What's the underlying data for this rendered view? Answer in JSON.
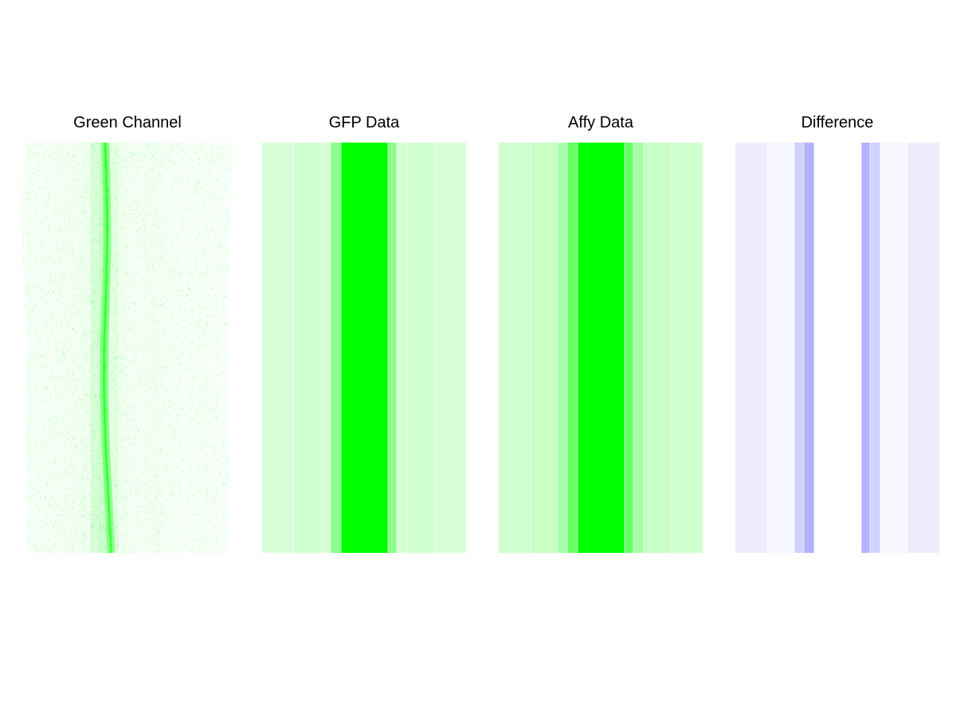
{
  "chart_data": [
    {
      "type": "image",
      "title": "Green Channel",
      "color": "#00ff00",
      "description_of_content": "fluorescence microscopy channel, bright vertical streak",
      "column_profile": [
        0.08,
        0.1,
        0.1,
        0.11,
        0.12,
        0.12,
        0.14,
        0.18,
        0.45,
        0.55,
        0.3,
        0.16,
        0.12,
        0.11,
        0.12,
        0.13,
        0.1,
        0.1,
        0.09,
        0.09,
        0.1,
        0.09,
        0.08,
        0.08
      ]
    },
    {
      "type": "heatmap",
      "title": "GFP Data",
      "color": "#00ff00",
      "band_widths": [
        40,
        34,
        12,
        13,
        59,
        11,
        13,
        34,
        40
      ],
      "band_values": [
        0.15,
        0.19,
        0.16,
        0.45,
        1.0,
        0.45,
        0.16,
        0.19,
        0.15
      ]
    },
    {
      "type": "heatmap",
      "title": "Affy Data",
      "color": "#00ff00",
      "band_widths": [
        40,
        34,
        12,
        13,
        59,
        11,
        13,
        34,
        40
      ],
      "band_values": [
        0.19,
        0.22,
        0.35,
        0.6,
        1.0,
        0.6,
        0.35,
        0.22,
        0.19
      ]
    },
    {
      "type": "heatmap",
      "title": "Difference",
      "color": "#0000ff",
      "band_widths": [
        40,
        34,
        12,
        13,
        59,
        11,
        13,
        34,
        40
      ],
      "band_values": [
        0.07,
        0.03,
        0.18,
        0.3,
        0.0,
        0.3,
        0.18,
        0.03,
        0.07
      ]
    }
  ]
}
